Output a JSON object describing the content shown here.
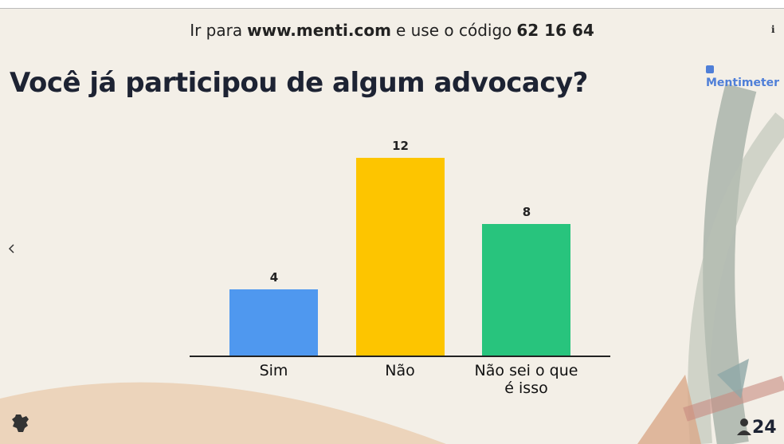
{
  "header": {
    "parts": [
      "Ir para",
      "www.menti.com",
      "e use o código",
      "62 16 64"
    ]
  },
  "info": "i",
  "brand": "Mentimeter",
  "participants": "24",
  "chart_data": {
    "type": "bar",
    "title": "Você já participou de algum advocacy?",
    "categories": [
      "Sim",
      "Não",
      "Não sei o que é isso"
    ],
    "values": [
      4,
      12,
      8
    ],
    "colors": [
      "#4f98ef",
      "#fdc500",
      "#28c47d"
    ]
  }
}
